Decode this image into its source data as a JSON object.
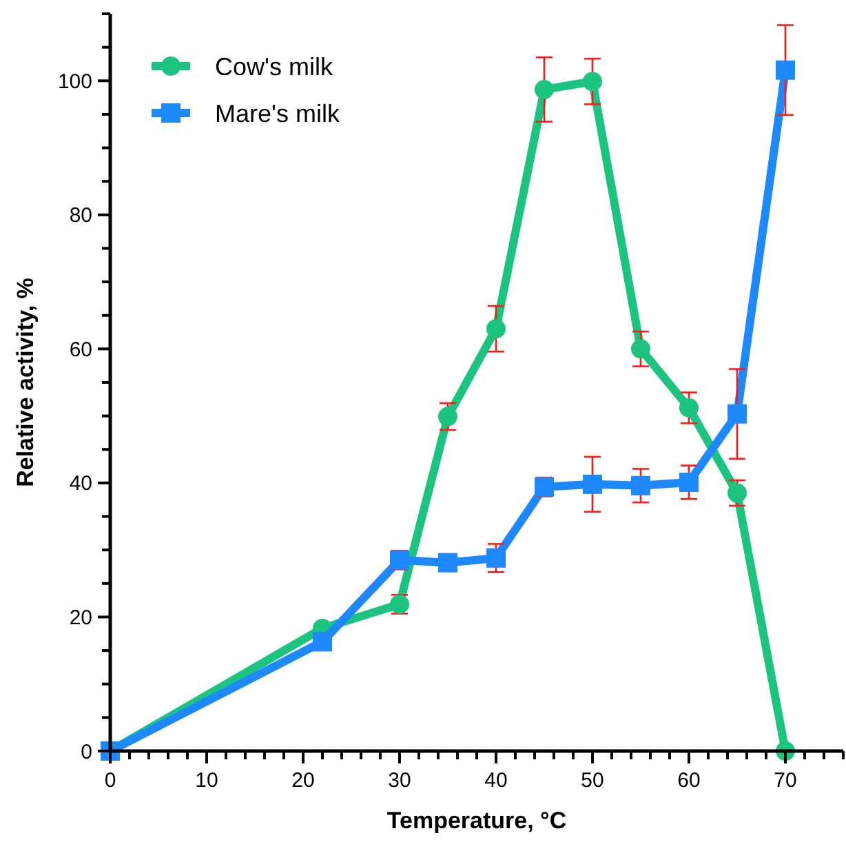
{
  "chart_data": {
    "type": "line",
    "xlabel": "Temperature, °C",
    "ylabel": "Relative activity, %",
    "xlim": [
      0,
      76
    ],
    "ylim": [
      0,
      110
    ],
    "xticks": [
      0,
      {
        "value": 2,
        "label": null
      },
      {
        "value": 4,
        "label": null
      },
      {
        "value": 6,
        "label": null
      },
      {
        "value": 8,
        "label": null
      },
      10,
      {
        "value": 12,
        "label": null
      },
      {
        "value": 14,
        "label": null
      },
      {
        "value": 16,
        "label": null
      },
      {
        "value": 18,
        "label": null
      },
      20,
      {
        "value": 22,
        "label": null
      },
      {
        "value": 24,
        "label": null
      },
      {
        "value": 26,
        "label": null
      },
      {
        "value": 28,
        "label": null
      },
      30,
      {
        "value": 32,
        "label": null
      },
      {
        "value": 34,
        "label": null
      },
      {
        "value": 36,
        "label": null
      },
      {
        "value": 38,
        "label": null
      },
      40,
      {
        "value": 42,
        "label": null
      },
      {
        "value": 44,
        "label": null
      },
      {
        "value": 46,
        "label": null
      },
      {
        "value": 48,
        "label": null
      },
      50,
      {
        "value": 52,
        "label": null
      },
      {
        "value": 54,
        "label": null
      },
      {
        "value": 56,
        "label": null
      },
      {
        "value": 58,
        "label": null
      },
      60,
      {
        "value": 62,
        "label": null
      },
      {
        "value": 64,
        "label": null
      },
      {
        "value": 66,
        "label": null
      },
      {
        "value": 68,
        "label": null
      },
      70,
      {
        "value": 72,
        "label": null
      },
      {
        "value": 74,
        "label": null
      },
      {
        "value": 76,
        "label": null
      }
    ],
    "yticks": [
      0,
      {
        "value": 5,
        "label": null
      },
      {
        "value": 10,
        "label": null
      },
      {
        "value": 15,
        "label": null
      },
      20,
      {
        "value": 25,
        "label": null
      },
      {
        "value": 30,
        "label": null
      },
      {
        "value": 35,
        "label": null
      },
      40,
      {
        "value": 45,
        "label": null
      },
      {
        "value": 50,
        "label": null
      },
      {
        "value": 55,
        "label": null
      },
      60,
      {
        "value": 65,
        "label": null
      },
      {
        "value": 70,
        "label": null
      },
      {
        "value": 75,
        "label": null
      },
      80,
      {
        "value": 85,
        "label": null
      },
      {
        "value": 90,
        "label": null
      },
      {
        "value": 95,
        "label": null
      },
      100,
      {
        "value": 105,
        "label": null
      },
      {
        "value": 110,
        "label": null
      }
    ],
    "x": [
      0,
      22,
      30,
      35,
      40,
      45,
      50,
      55,
      60,
      65,
      70
    ],
    "grid": false,
    "legend": "top left",
    "line_style": "solid",
    "series": [
      {
        "name": "Cow's milk",
        "color": "#1dc47f",
        "marker": "circle",
        "values": [
          0,
          18.3,
          21.9,
          49.9,
          63,
          98.7,
          99.9,
          60,
          51.2,
          38.5,
          0
        ],
        "errors": [
          null,
          null,
          1.4,
          2,
          3.4,
          4.8,
          3.4,
          2.6,
          2.3,
          1.9,
          null
        ]
      },
      {
        "name": "Mare's milk",
        "color": "#1e88ff",
        "marker": "square",
        "values": [
          0,
          16.3,
          28.5,
          28.1,
          28.8,
          39.4,
          39.8,
          39.6,
          40.1,
          50.3,
          101.6
        ],
        "errors": [
          null,
          null,
          1.4,
          null,
          2.1,
          1.4,
          4.1,
          2.5,
          2.5,
          6.7,
          6.7
        ]
      }
    ]
  }
}
